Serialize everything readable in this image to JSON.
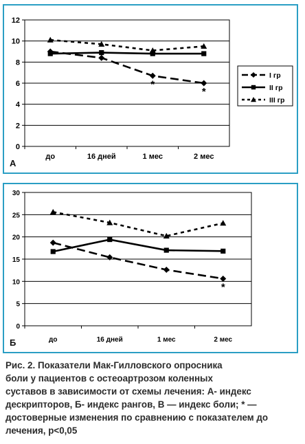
{
  "chart_data": [
    {
      "panel_letter": "А",
      "type": "line",
      "categories": [
        "до",
        "16 дней",
        "1 мес",
        "2 мес"
      ],
      "ylim": [
        0,
        12
      ],
      "yticks": [
        0,
        2,
        4,
        6,
        8,
        10,
        12
      ],
      "grid": "horizontal",
      "legend_position": "right",
      "series": [
        {
          "name": "I гр",
          "values": [
            9.0,
            8.4,
            6.7,
            6.0
          ],
          "marker": "diamond",
          "dash": "long-dash"
        },
        {
          "name": "II гр",
          "values": [
            8.8,
            8.9,
            8.8,
            8.8
          ],
          "marker": "square",
          "dash": "solid"
        },
        {
          "name": "III гр",
          "values": [
            10.1,
            9.7,
            9.1,
            9.5
          ],
          "marker": "triangle",
          "dash": "short-dash"
        }
      ],
      "annotations": [
        {
          "text": "*",
          "category": "1 мес",
          "value": 6.7
        },
        {
          "text": "*",
          "category": "2 мес",
          "value": 6.0
        }
      ]
    },
    {
      "panel_letter": "Б",
      "type": "line",
      "categories": [
        "до",
        "16 дней",
        "1 мес",
        "2 мес"
      ],
      "ylim": [
        0,
        30
      ],
      "yticks": [
        0,
        5,
        10,
        15,
        20,
        25,
        30
      ],
      "grid": "horizontal",
      "series": [
        {
          "values": [
            18.7,
            15.4,
            12.6,
            10.6
          ],
          "marker": "diamond",
          "dash": "long-dash"
        },
        {
          "values": [
            16.7,
            19.4,
            17.0,
            16.8
          ],
          "marker": "square",
          "dash": "solid"
        },
        {
          "values": [
            25.6,
            23.2,
            20.2,
            23.1
          ],
          "marker": "triangle",
          "dash": "short-dash"
        }
      ],
      "annotations": [
        {
          "text": "*",
          "category": "2 мес",
          "value": 10.6
        }
      ]
    }
  ],
  "caption": {
    "lines": [
      "Рис. 2. Показатели Мак-Гилловского опросника",
      "боли у пациентов с остеоартрозом коленных",
      "суставов в зависимости от схемы лечения: А- индекс",
      "дескрипторов, Б- индекс рангов, В — индекс боли; * —",
      "достоверные изменения по сравнению с показателем до",
      "лечения, p<0,05"
    ]
  }
}
